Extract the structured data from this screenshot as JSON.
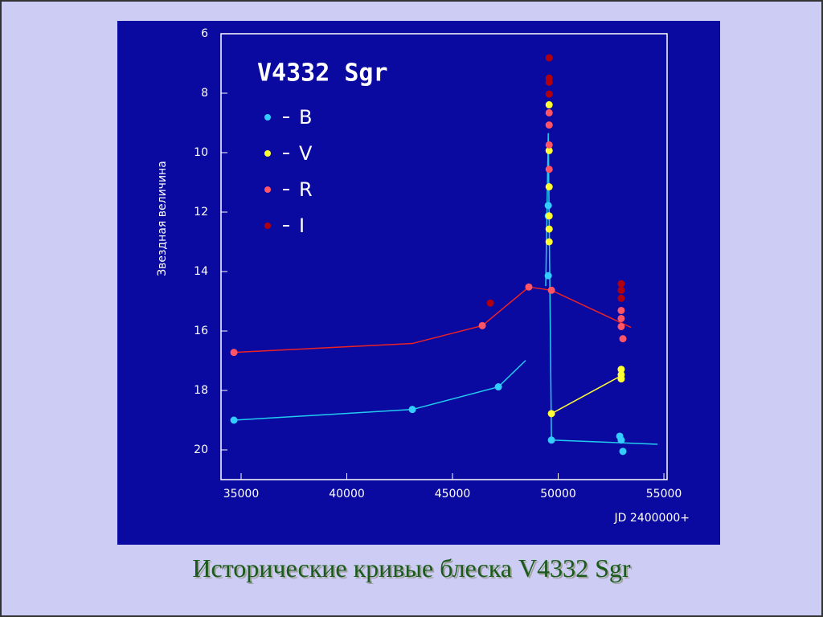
{
  "chart_data": {
    "type": "scatter",
    "title": "V4332 Sgr",
    "caption": "Исторические кривые блеска V4332 Sgr",
    "y_label": "Звездная величина",
    "x_label": "JD 2400000+",
    "xlim": [
      34050,
      55150
    ],
    "xticks": [
      35000,
      40000,
      45000,
      50000,
      55000
    ],
    "ylim": [
      6,
      21
    ],
    "yticks": [
      6,
      8,
      10,
      12,
      14,
      16,
      18,
      20
    ],
    "y_inverted": true,
    "series": [
      {
        "name": "B",
        "color": "#33ccff",
        "x": [
          34660,
          43100,
          47170,
          49530,
          49530,
          49530,
          49680,
          52910,
          52980,
          53060
        ],
        "values": [
          19.0,
          18.64,
          17.88,
          14.14,
          12.13,
          11.78,
          19.67,
          19.54,
          19.67,
          20.05
        ]
      },
      {
        "name": "V",
        "color": "#ffff33",
        "x": [
          49680,
          52980,
          52980,
          52980,
          49570,
          49570,
          49570,
          49570,
          49570,
          49570
        ],
        "values": [
          18.78,
          17.29,
          17.47,
          17.61,
          8.39,
          9.93,
          11.15,
          12.13,
          12.57,
          13.0
        ]
      },
      {
        "name": "R",
        "color": "#ff5566",
        "x": [
          34660,
          46410,
          48610,
          49680,
          52980,
          52980,
          52980,
          53060,
          49570,
          49570,
          49570,
          49570
        ],
        "values": [
          16.72,
          15.82,
          14.52,
          14.63,
          15.31,
          15.58,
          15.85,
          16.26,
          8.66,
          9.07,
          9.74,
          10.56
        ]
      },
      {
        "name": "I",
        "color": "#b00010",
        "x": [
          46790,
          49570,
          49570,
          49570,
          49570,
          52980,
          52980,
          52980
        ],
        "values": [
          15.06,
          6.81,
          7.49,
          7.63,
          8.03,
          14.41,
          14.63,
          14.9
        ]
      }
    ],
    "lines": [
      {
        "color": "#22ccee",
        "x": [
          34660,
          43100,
          47170,
          48460
        ],
        "values": [
          19.0,
          18.64,
          17.88,
          16.99
        ]
      },
      {
        "color": "#22ccee",
        "x": [
          49410,
          49530,
          49680,
          54700
        ],
        "values": [
          14.49,
          9.34,
          19.67,
          19.81
        ]
      },
      {
        "color": "#ffff33",
        "x": [
          49680,
          52910
        ],
        "values": [
          18.78,
          17.53
        ]
      },
      {
        "color": "#ee2222",
        "x": [
          34660,
          43100,
          46410,
          48610,
          49680,
          53440
        ],
        "values": [
          16.72,
          16.42,
          15.82,
          14.52,
          14.63,
          15.88
        ]
      }
    ]
  }
}
